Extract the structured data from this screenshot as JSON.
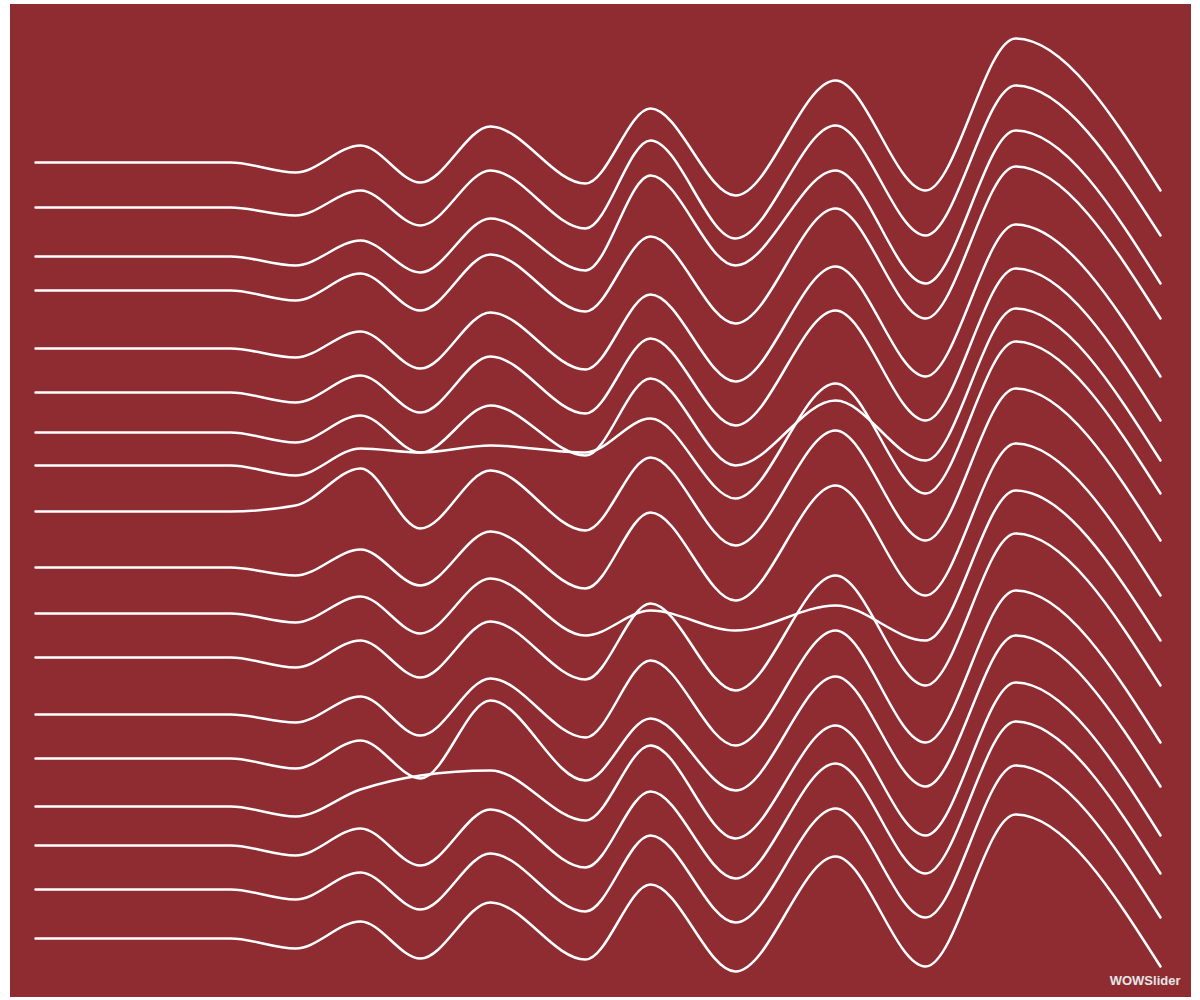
{
  "chart_data": {
    "type": "line",
    "annotations": [
      "WOWSlider"
    ],
    "color": "#ffffff",
    "tick_labels": false,
    "xlim": [
      10,
      1190
    ],
    "ylim": [
      996,
      4
    ],
    "xticks": [],
    "yticks": [],
    "x": [
      35,
      230,
      295,
      360,
      420,
      490,
      585,
      650,
      735,
      835,
      925,
      1015,
      1160
    ],
    "series": [
      {
        "values": [
          162,
          162,
          172,
          145,
          182,
          126,
          183,
          108,
          195,
          80,
          190,
          38,
          190
        ]
      },
      {
        "values": [
          207,
          207,
          215,
          190,
          225,
          170,
          228,
          140,
          238,
          125,
          235,
          85,
          235
        ]
      },
      {
        "values": [
          256,
          256,
          265,
          240,
          272,
          218,
          270,
          175,
          265,
          170,
          283,
          130,
          283
        ]
      },
      {
        "values": [
          290,
          290,
          300,
          273,
          310,
          254,
          311,
          236,
          323,
          208,
          318,
          166,
          318
        ]
      },
      {
        "values": [
          348,
          348,
          357,
          331,
          368,
          312,
          369,
          294,
          381,
          266,
          376,
          224,
          376
        ]
      },
      {
        "values": [
          392,
          392,
          402,
          375,
          412,
          356,
          413,
          338,
          425,
          310,
          420,
          268,
          420
        ]
      },
      {
        "values": [
          432,
          432,
          442,
          415,
          452,
          405,
          455,
          378,
          465,
          400,
          460,
          308,
          460
        ]
      },
      {
        "values": [
          465,
          465,
          475,
          448,
          452,
          445,
          452,
          418,
          498,
          383,
          493,
          341,
          493
        ]
      },
      {
        "values": [
          511,
          511,
          505,
          468,
          528,
          470,
          530,
          457,
          545,
          430,
          540,
          388,
          540
        ]
      },
      {
        "values": [
          567,
          567,
          575,
          549,
          585,
          531,
          588,
          512,
          600,
          485,
          595,
          443,
          595
        ]
      },
      {
        "values": [
          613,
          613,
          622,
          596,
          633,
          578,
          635,
          610,
          630,
          605,
          640,
          490,
          640
        ]
      },
      {
        "values": [
          657,
          657,
          667,
          640,
          677,
          621,
          679,
          603,
          690,
          575,
          685,
          533,
          685
        ]
      },
      {
        "values": [
          714,
          714,
          722,
          696,
          735,
          678,
          737,
          660,
          745,
          630,
          742,
          590,
          742
        ]
      },
      {
        "values": [
          758,
          758,
          768,
          740,
          778,
          700,
          780,
          718,
          790,
          676,
          786,
          635,
          786
        ]
      },
      {
        "values": [
          806,
          806,
          816,
          789,
          775,
          770,
          820,
          745,
          838,
          725,
          835,
          682,
          835
        ]
      },
      {
        "values": [
          845,
          845,
          855,
          828,
          865,
          809,
          867,
          791,
          878,
          763,
          873,
          721,
          873
        ]
      },
      {
        "values": [
          889,
          889,
          899,
          872,
          909,
          853,
          911,
          835,
          922,
          808,
          917,
          765,
          917
        ]
      },
      {
        "values": [
          938,
          938,
          948,
          921,
          958,
          902,
          959,
          884,
          971,
          856,
          966,
          814,
          966
        ]
      }
    ]
  }
}
